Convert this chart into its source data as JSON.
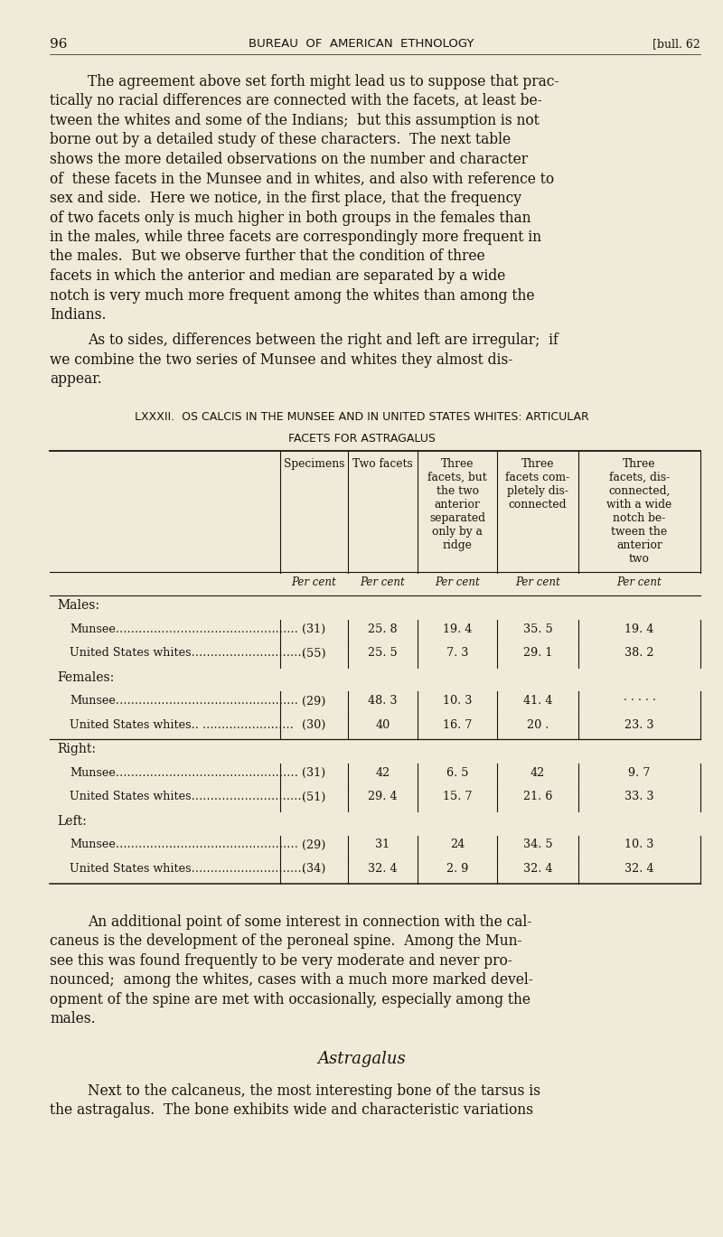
{
  "bg_color": "#f0ead8",
  "text_color": "#1a1410",
  "page_number": "96",
  "header_center": "BUREAU  OF  AMERICAN  ETHNOLOGY",
  "header_right": "[bull. 62",
  "para1_lines": [
    "The agreement above set forth might lead us to suppose that prac-",
    "tically no racial differences are connected with the facets, at least be-",
    "tween the whites and some of the Indians;  but this assumption is not",
    "borne out by a detailed study of these characters.  The next table",
    "shows the more detailed observations on the number and character",
    "of  these facets in the Munsee and in whites, and also with reference to",
    "sex and side.  Here we notice, in the first place, that the frequency",
    "of two facets only is much higher in both groups in the females than",
    "in the males, while three facets are correspondingly more frequent in",
    "the males.  But we observe further that the condition of three",
    "facets in which the anterior and median are separated by a wide",
    "notch is very much more frequent among the whites than among the",
    "Indians."
  ],
  "para2_lines": [
    "As to sides, differences between the right and left are irregular;  if",
    "we combine the two series of Munsee and whites they almost dis-",
    "appear."
  ],
  "table_title1": "LXXXII.  OS CALCIS IN THE MUNSEE AND IN UNITED STATES WHITES: ARTICULAR",
  "table_title2": "FACETS FOR ASTRAGALUS",
  "col_h1": [
    "Specimens",
    "Two facets",
    "Three\nfacets, but\nthe two\nanterior\nseparated\nonly by a\nridge",
    "Three\nfacets com-\npletely dis-\nconnected",
    "Three\nfacets, dis-\nconnected,\nwith a wide\nnotch be-\ntween the\nanterior\ntwo"
  ],
  "row_groups": [
    {
      "type": "group",
      "label": "Males:",
      "sep_before": false
    },
    {
      "type": "data",
      "label": "Munsee…………………………………………",
      "spec": "(31)",
      "v1": "25. 8",
      "v2": "19. 4",
      "v3": "35. 5",
      "v4": "19. 4"
    },
    {
      "type": "data",
      "label": "United States whites…………………………",
      "spec": "(55)",
      "v1": "25. 5",
      "v2": "7. 3",
      "v3": "29. 1",
      "v4": "38. 2"
    },
    {
      "type": "group",
      "label": "Females:",
      "sep_before": false
    },
    {
      "type": "data",
      "label": "Munsee…………………………………………",
      "spec": "(29)",
      "v1": "48. 3",
      "v2": "10. 3",
      "v3": "41. 4",
      "v4": "· · · · ·"
    },
    {
      "type": "data",
      "label": "United States whites.. ……………………",
      "spec": "(30)",
      "v1": "40",
      "v2": "16. 7",
      "v3": "20 .",
      "v4": "23. 3"
    },
    {
      "type": "group",
      "label": "Right:",
      "sep_before": true
    },
    {
      "type": "data",
      "label": "Munsee…………………………………………",
      "spec": "(31)",
      "v1": "42",
      "v2": "6. 5",
      "v3": "42",
      "v4": "9. 7"
    },
    {
      "type": "data",
      "label": "United States whites…………………………",
      "spec": "(51)",
      "v1": "29. 4",
      "v2": "15. 7",
      "v3": "21. 6",
      "v4": "33. 3"
    },
    {
      "type": "group",
      "label": "Left:",
      "sep_before": false
    },
    {
      "type": "data",
      "label": "Munsee…………………………………………",
      "spec": "(29)",
      "v1": "31",
      "v2": "24",
      "v3": "34. 5",
      "v4": "10. 3"
    },
    {
      "type": "data",
      "label": "United States whites…………………………",
      "spec": "(34)",
      "v1": "32. 4",
      "v2": "2. 9",
      "v3": "32. 4",
      "v4": "32. 4"
    }
  ],
  "post_lines": [
    "An additional point of some interest in connection with the cal-",
    "caneus is the development of the peroneal spine.  Among the Mun-",
    "see this was found frequently to be very moderate and never pro-",
    "nounced;  among the whites, cases with a much more marked devel-",
    "opment of the spine are met with occasionally, especially among the",
    "males."
  ],
  "section_head": "Astragalus",
  "final_lines": [
    "Next to the calcaneus, the most interesting bone of the tarsus is",
    "the astragalus.  The bone exhibits wide and characteristic variations"
  ]
}
